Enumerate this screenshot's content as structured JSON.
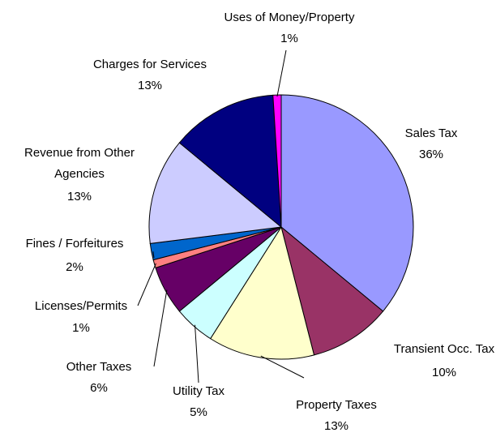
{
  "chart_data": {
    "type": "pie",
    "categories": [
      "Sales Tax",
      "Transient Occ. Tax",
      "Property Taxes",
      "Utility Tax",
      "Other Taxes",
      "Licenses/Permits",
      "Fines / Forfeitures",
      "Revenue from Other Agencies",
      "Charges for Services",
      "Uses of Money/Property"
    ],
    "values": [
      36,
      10,
      13,
      5,
      6,
      1,
      2,
      13,
      13,
      1
    ],
    "value_labels": [
      "36%",
      "10%",
      "13%",
      "5%",
      "6%",
      "1%",
      "2%",
      "13%",
      "13%",
      "1%"
    ],
    "colors": [
      "#9999ff",
      "#993366",
      "#ffffcc",
      "#ccffff",
      "#660066",
      "#ff8080",
      "#0066cc",
      "#ccccff",
      "#000080",
      "#ff00ff"
    ]
  }
}
